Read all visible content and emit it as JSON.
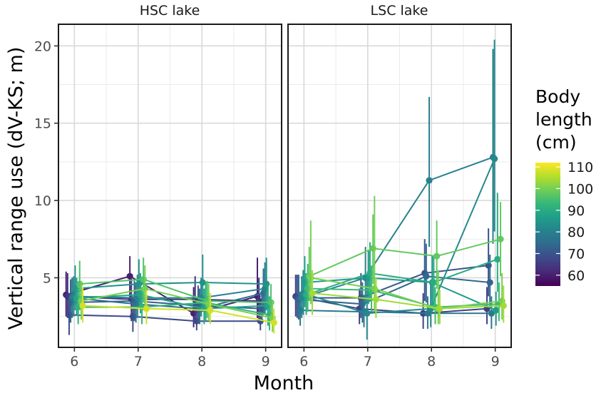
{
  "chart_data": {
    "type": "line",
    "panels": [
      {
        "title": "HSC lake",
        "series": [
          {
            "body_length": 60,
            "x": [
              6,
              7,
              8,
              9
            ],
            "y": [
              3.9,
              5.1,
              2.7,
              3.8
            ],
            "lower": [
              2.5,
              3.6,
              1.8,
              2.4
            ],
            "upper": [
              5.4,
              6.4,
              4.4,
              6.3
            ]
          },
          {
            "body_length": 64,
            "x": [
              6,
              7,
              8,
              9
            ],
            "y": [
              3.8,
              3.6,
              3.6,
              3.5
            ],
            "lower": [
              2.4,
              2.2,
              2.2,
              2.1
            ],
            "upper": [
              5.3,
              5.0,
              5.1,
              5.0
            ]
          },
          {
            "body_length": 68,
            "x": [
              6,
              7,
              8,
              9
            ],
            "y": [
              2.6,
              2.5,
              2.2,
              2.2
            ],
            "lower": [
              1.3,
              1.5,
              1.6,
              1.6
            ],
            "upper": [
              4.0,
              3.8,
              3.4,
              3.4
            ]
          },
          {
            "body_length": 72,
            "x": [
              6,
              7,
              8,
              9
            ],
            "y": [
              3.4,
              3.5,
              3.2,
              3.0
            ],
            "lower": [
              2.1,
              2.2,
              2.1,
              2.0
            ],
            "upper": [
              4.9,
              4.8,
              4.5,
              4.2
            ]
          },
          {
            "body_length": 76,
            "x": [
              6,
              7,
              8,
              9
            ],
            "y": [
              3.7,
              3.3,
              3.0,
              4.0
            ],
            "lower": [
              2.4,
              2.1,
              2.0,
              2.6
            ],
            "upper": [
              5.0,
              4.7,
              4.3,
              5.6
            ]
          },
          {
            "body_length": 80,
            "x": [
              6,
              7,
              8,
              9
            ],
            "y": [
              3.8,
              3.7,
              3.7,
              4.3
            ],
            "lower": [
              2.5,
              2.4,
              2.5,
              2.7
            ],
            "upper": [
              5.1,
              5.2,
              5.0,
              6.0
            ]
          },
          {
            "body_length": 84,
            "x": [
              6,
              7,
              8,
              9
            ],
            "y": [
              4.3,
              4.6,
              4.7,
              4.6
            ],
            "lower": [
              2.9,
              3.1,
              3.1,
              2.9
            ],
            "upper": [
              5.8,
              6.2,
              6.5,
              6.3
            ]
          },
          {
            "body_length": 88,
            "x": [
              6,
              7,
              8,
              9
            ],
            "y": [
              3.7,
              3.9,
              3.0,
              3.2
            ],
            "lower": [
              2.6,
              2.7,
              2.0,
              1.9
            ],
            "upper": [
              5.0,
              5.3,
              4.3,
              4.6
            ]
          },
          {
            "body_length": 92,
            "x": [
              6,
              7,
              8,
              9
            ],
            "y": [
              3.1,
              3.1,
              3.4,
              2.6
            ],
            "lower": [
              2.0,
              2.0,
              2.2,
              1.6
            ],
            "upper": [
              4.3,
              4.4,
              4.7,
              3.8
            ]
          },
          {
            "body_length": 96,
            "x": [
              6,
              7,
              8,
              9
            ],
            "y": [
              4.6,
              4.9,
              3.5,
              3.4
            ],
            "lower": [
              3.2,
              3.4,
              2.4,
              2.2
            ],
            "upper": [
              6.1,
              6.3,
              4.8,
              4.6
            ]
          },
          {
            "body_length": 100,
            "x": [
              6,
              7,
              8,
              9
            ],
            "y": [
              3.5,
              4.3,
              3.3,
              2.4
            ],
            "lower": [
              2.3,
              3.0,
              2.2,
              1.5
            ],
            "upper": [
              4.8,
              5.8,
              4.6,
              3.5
            ]
          },
          {
            "body_length": 108,
            "x": [
              6,
              7,
              8,
              9
            ],
            "y": [
              3.2,
              3.0,
              2.9,
              2.1
            ],
            "lower": [
              2.1,
              2.0,
              2.0,
              1.4
            ],
            "upper": [
              4.4,
              4.2,
              4.0,
              3.0
            ]
          }
        ]
      },
      {
        "title": "LSC lake",
        "series": [
          {
            "body_length": 66,
            "x": [
              6,
              7,
              8,
              9
            ],
            "y": [
              3.8,
              3.0,
              2.7,
              3.0
            ],
            "lower": [
              2.5,
              2.0,
              1.7,
              2.0
            ],
            "upper": [
              5.2,
              4.3,
              4.0,
              4.4
            ]
          },
          {
            "body_length": 70,
            "x": [
              6,
              7,
              8,
              9
            ],
            "y": [
              3.7,
              3.7,
              5.3,
              5.8
            ],
            "lower": [
              2.4,
              2.4,
              3.5,
              3.8
            ],
            "upper": [
              5.2,
              5.3,
              7.5,
              8.2
            ]
          },
          {
            "body_length": 74,
            "x": [
              6,
              7,
              8,
              9
            ],
            "y": [
              3.6,
              3.3,
              5.1,
              4.7
            ],
            "lower": [
              2.3,
              2.1,
              3.4,
              3.0
            ],
            "upper": [
              5.2,
              4.7,
              7.2,
              6.5
            ]
          },
          {
            "body_length": 78,
            "x": [
              6,
              7,
              8,
              9
            ],
            "y": [
              2.9,
              2.8,
              2.7,
              2.7
            ],
            "lower": [
              1.9,
              1.8,
              1.7,
              1.7
            ],
            "upper": [
              4.1,
              3.9,
              3.8,
              3.8
            ]
          },
          {
            "body_length": 80,
            "x": [
              6,
              7,
              8,
              9
            ],
            "y": [
              3.7,
              5.0,
              11.3,
              12.8
            ],
            "lower": [
              2.4,
              3.3,
              7.0,
              7.2
            ],
            "upper": [
              5.1,
              7.0,
              16.7,
              19.8
            ]
          },
          {
            "body_length": 82,
            "x": [
              6,
              7,
              8,
              9
            ],
            "y": [
              4.0,
              2.7,
              3.0,
              12.7
            ],
            "lower": [
              2.6,
              1.0,
              1.8,
              8.0
            ],
            "upper": [
              5.5,
              4.8,
              4.7,
              20.4
            ]
          },
          {
            "body_length": 86,
            "x": [
              6,
              7,
              8,
              9
            ],
            "y": [
              4.7,
              5.0,
              4.7,
              2.9
            ],
            "lower": [
              3.1,
              3.3,
              3.0,
              1.9
            ],
            "upper": [
              6.4,
              6.8,
              6.4,
              4.1
            ]
          },
          {
            "body_length": 90,
            "x": [
              6,
              7,
              8,
              9
            ],
            "y": [
              3.9,
              5.3,
              4.7,
              6.2
            ],
            "lower": [
              2.6,
              3.5,
              3.0,
              4.1
            ],
            "upper": [
              5.3,
              7.3,
              6.4,
              10.5
            ]
          },
          {
            "body_length": 94,
            "x": [
              6,
              7,
              8,
              9
            ],
            "y": [
              4.3,
              4.2,
              3.1,
              3.3
            ],
            "lower": [
              2.8,
              2.8,
              2.0,
              2.2
            ],
            "upper": [
              5.9,
              5.8,
              4.4,
              4.7
            ]
          },
          {
            "body_length": 98,
            "x": [
              6,
              7,
              8,
              9
            ],
            "y": [
              5.1,
              6.9,
              6.4,
              7.5
            ],
            "lower": [
              3.5,
              4.6,
              4.3,
              5.1
            ],
            "upper": [
              7.0,
              9.1,
              8.7,
              9.9
            ]
          },
          {
            "body_length": 100,
            "x": [
              6,
              7,
              8,
              9
            ],
            "y": [
              5.0,
              4.3,
              3.0,
              3.5
            ],
            "lower": [
              3.3,
              2.8,
              2.0,
              2.3
            ],
            "upper": [
              8.7,
              10.3,
              5.5,
              5.3
            ]
          },
          {
            "body_length": 104,
            "x": [
              6,
              7,
              8,
              9
            ],
            "y": [
              4.0,
              3.6,
              3.0,
              3.2
            ],
            "lower": [
              2.6,
              2.4,
              2.0,
              2.1
            ],
            "upper": [
              5.5,
              5.0,
              4.2,
              4.5
            ]
          }
        ]
      }
    ],
    "xlabel": "Month",
    "ylabel": "Vertical range use (dV-KS; m)",
    "x_ticks": [
      6,
      7,
      8,
      9
    ],
    "xlim": [
      5.75,
      9.25
    ],
    "y_ticks": [
      5,
      10,
      15,
      20
    ],
    "ylim": [
      0.5,
      21.4
    ],
    "grid": true,
    "legend": {
      "title_lines": [
        "Body",
        "length",
        "(cm)"
      ],
      "type": "colorbar",
      "placement": "right",
      "ticks": [
        60,
        70,
        80,
        90,
        100,
        110
      ],
      "range": [
        55,
        112
      ],
      "palette": [
        "#440154",
        "#482878",
        "#3e4989",
        "#31688e",
        "#26828e",
        "#1f9e89",
        "#35b779",
        "#6ece58",
        "#b5de2b",
        "#fde725"
      ]
    }
  }
}
